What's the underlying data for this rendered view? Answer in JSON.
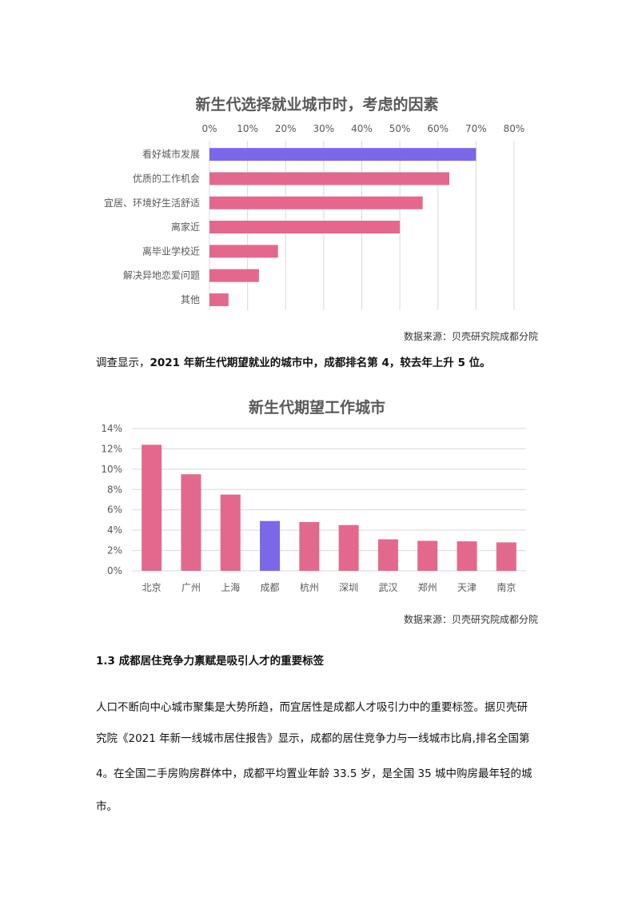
{
  "charts": [
    {
      "title": "新生代选择就业城市时，考虑的因素",
      "source": "数据来源：贝壳研究院成都分院"
    },
    {
      "title": "新生代期望工作城市",
      "source": "数据来源：贝壳研究院成都分院"
    }
  ],
  "paragraph1": {
    "prefix": "调查显示，",
    "bold": "2021 年新生代期望就业的城市中，成都排名第 4，较去年上升 5 位。"
  },
  "section_heading": "1.3  成都居住竞争力禀赋是吸引人才的重要标签",
  "body_lines": [
    "人口不断向中心城市聚集是大势所趋，而宜居性是成都人才吸引力中的重要标签。据贝壳研",
    "究院《2021 年新一线城市居住报告》显示，成都的居住竞争力与一线城市比肩,排名全国第",
    "4。在全国二手房购房群体中，成都平均置业年龄 33.5 岁，是全国 35 城中购房最年轻的城",
    "市。"
  ],
  "chart_data": [
    {
      "type": "bar",
      "orientation": "horizontal",
      "title": "新生代选择就业城市时，考虑的因素",
      "categories": [
        "看好城市发展",
        "优质的工作机会",
        "宜居、环境好生活舒适",
        "离家近",
        "离毕业学校近",
        "解决异地恋爱问题",
        "其他"
      ],
      "values": [
        70,
        63,
        56,
        50,
        18,
        13,
        5
      ],
      "highlight_index": 0,
      "xlim": [
        0,
        80
      ],
      "ticks": [
        "0%",
        "10%",
        "20%",
        "30%",
        "40%",
        "50%",
        "60%",
        "70%",
        "80%"
      ],
      "tick_values": [
        0,
        10,
        20,
        30,
        40,
        50,
        60,
        70,
        80
      ],
      "axis_position": "top",
      "grid": true,
      "colors": {
        "bar": "#E2698D",
        "highlight": "#7B68E8",
        "grid": "#D9D9D9",
        "text": "#595959"
      }
    },
    {
      "type": "bar",
      "orientation": "vertical",
      "title": "新生代期望工作城市",
      "categories": [
        "北京",
        "广州",
        "上海",
        "成都",
        "杭州",
        "深圳",
        "武汉",
        "郑州",
        "天津",
        "南京"
      ],
      "values": [
        12.4,
        9.5,
        7.5,
        4.9,
        4.8,
        4.5,
        3.1,
        2.95,
        2.9,
        2.8
      ],
      "highlight_index": 3,
      "ylim": [
        0,
        14
      ],
      "ticks": [
        "0%",
        "2%",
        "4%",
        "6%",
        "8%",
        "10%",
        "12%",
        "14%"
      ],
      "tick_values": [
        0,
        2,
        4,
        6,
        8,
        10,
        12,
        14
      ],
      "grid": true,
      "colors": {
        "bar": "#E2698D",
        "highlight": "#7B68E8",
        "grid": "#D9D9D9",
        "text": "#595959"
      }
    }
  ]
}
